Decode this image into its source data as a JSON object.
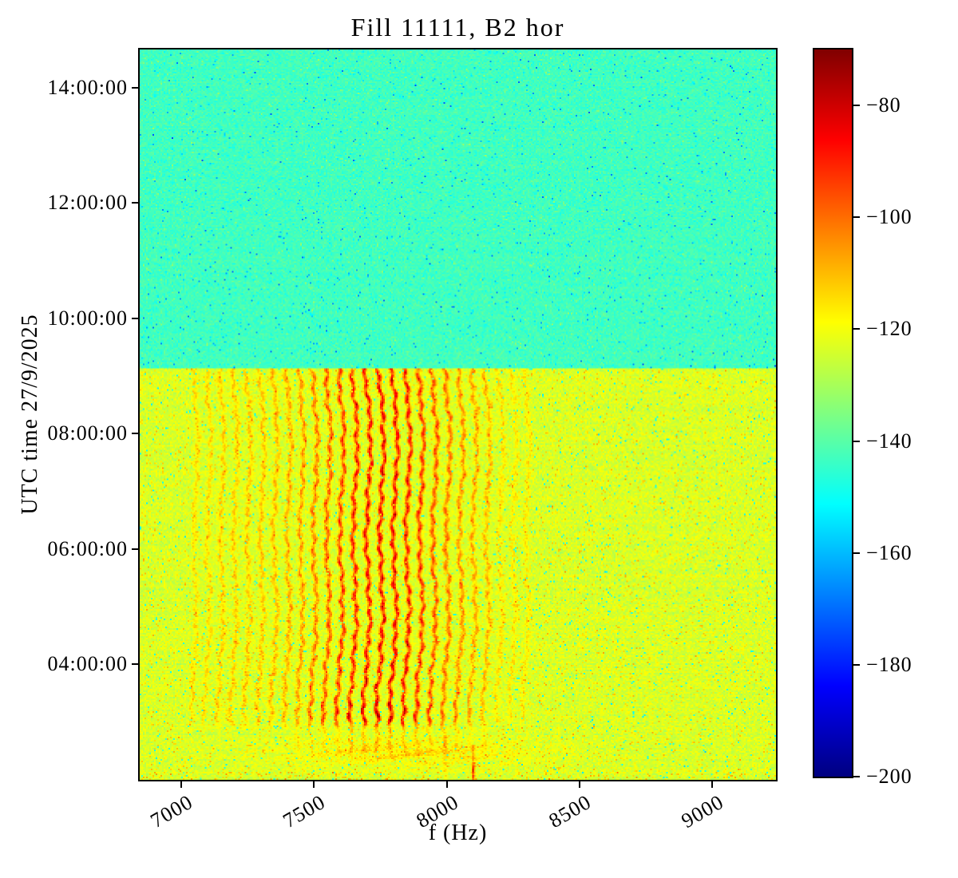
{
  "chart_data": {
    "type": "heatmap",
    "title": "Fill 11111, B2 hor",
    "xlabel": "f (Hz)",
    "ylabel": "UTC time 27/9/2025",
    "x_tick_labels": [
      "7000",
      "7500",
      "8000",
      "8500",
      "9000"
    ],
    "x_tick_values": [
      7000,
      7500,
      8000,
      8500,
      9000
    ],
    "x_range_hz": [
      6843,
      9241
    ],
    "y_tick_labels": [
      "14:00:00",
      "12:00:00",
      "10:00:00",
      "08:00:00",
      "06:00:00",
      "04:00:00"
    ],
    "y_tick_hours": [
      14,
      12,
      10,
      8,
      6,
      4
    ],
    "y_range_hours": [
      1.992,
      14.665
    ],
    "grid": false,
    "colormap": "jet",
    "colormap_stops": [
      "#000080",
      "#0000ff",
      "#0080ff",
      "#00ffff",
      "#80ff80",
      "#ffff00",
      "#ff8000",
      "#ff0000",
      "#800000"
    ],
    "colorbar_tick_labels": [
      "−80",
      "−100",
      "−120",
      "−140",
      "−160",
      "−180",
      "−200"
    ],
    "colorbar_tick_values": [
      -80,
      -100,
      -120,
      -140,
      -160,
      -180,
      -200
    ],
    "colorbar_range": [
      -200,
      -70
    ],
    "regions": {
      "quiet_after_hours": 9.13,
      "quiet_level_db": -143,
      "active_level_db": -123.5,
      "harmonic_spacing_hz": 50,
      "harmonics_start_hz": 7050,
      "harmonics_end_hz": 8300,
      "harmonics_peak_hz": 7760,
      "harmonics_peak_db": -85,
      "stripes_start_hours": 2.85,
      "stripes_end_hours": 9.13,
      "bottom_band_center_hours": 2.45,
      "bottom_band_center_hz": 7850,
      "bottom_band_level_db": -112,
      "bottom_line_hz": 8100,
      "secondary_line_hz": 7995
    },
    "noise_seed": 987654321
  }
}
